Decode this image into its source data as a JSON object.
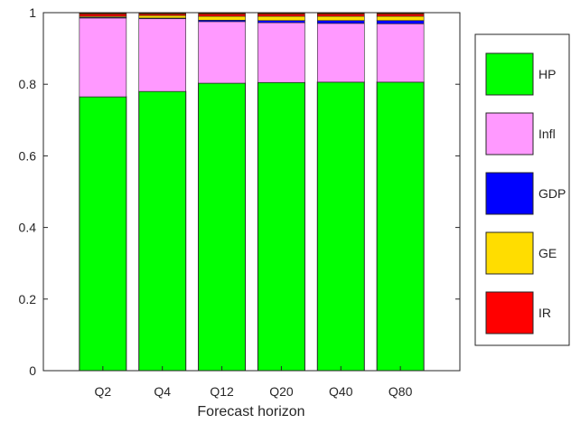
{
  "chart_data": {
    "type": "bar",
    "stacked": true,
    "categories": [
      "Q2",
      "Q4",
      "Q12",
      "Q20",
      "Q40",
      "Q80"
    ],
    "xlabel": "Forecast horizon",
    "ylabel": "",
    "ylim": [
      0,
      1
    ],
    "yticks": [
      "0",
      "0.2",
      "0.4",
      "0.6",
      "0.8",
      "1"
    ],
    "grid": false,
    "legend_position": "right",
    "series": [
      {
        "name": "HP",
        "color": "#00ff00",
        "values": [
          0.765,
          0.78,
          0.803,
          0.805,
          0.806,
          0.806
        ]
      },
      {
        "name": "Infl",
        "color": "#ff99ff",
        "values": [
          0.22,
          0.203,
          0.172,
          0.167,
          0.164,
          0.163
        ]
      },
      {
        "name": "GDP",
        "color": "#0000ff",
        "values": [
          0.002,
          0.002,
          0.004,
          0.006,
          0.008,
          0.009
        ]
      },
      {
        "name": "GE",
        "color": "#ffdd00",
        "values": [
          0.003,
          0.007,
          0.011,
          0.012,
          0.012,
          0.012
        ]
      },
      {
        "name": "IR",
        "color": "#ff0000",
        "values": [
          0.01,
          0.008,
          0.01,
          0.01,
          0.01,
          0.01
        ]
      }
    ],
    "dark_band_color": "#5c2200"
  }
}
